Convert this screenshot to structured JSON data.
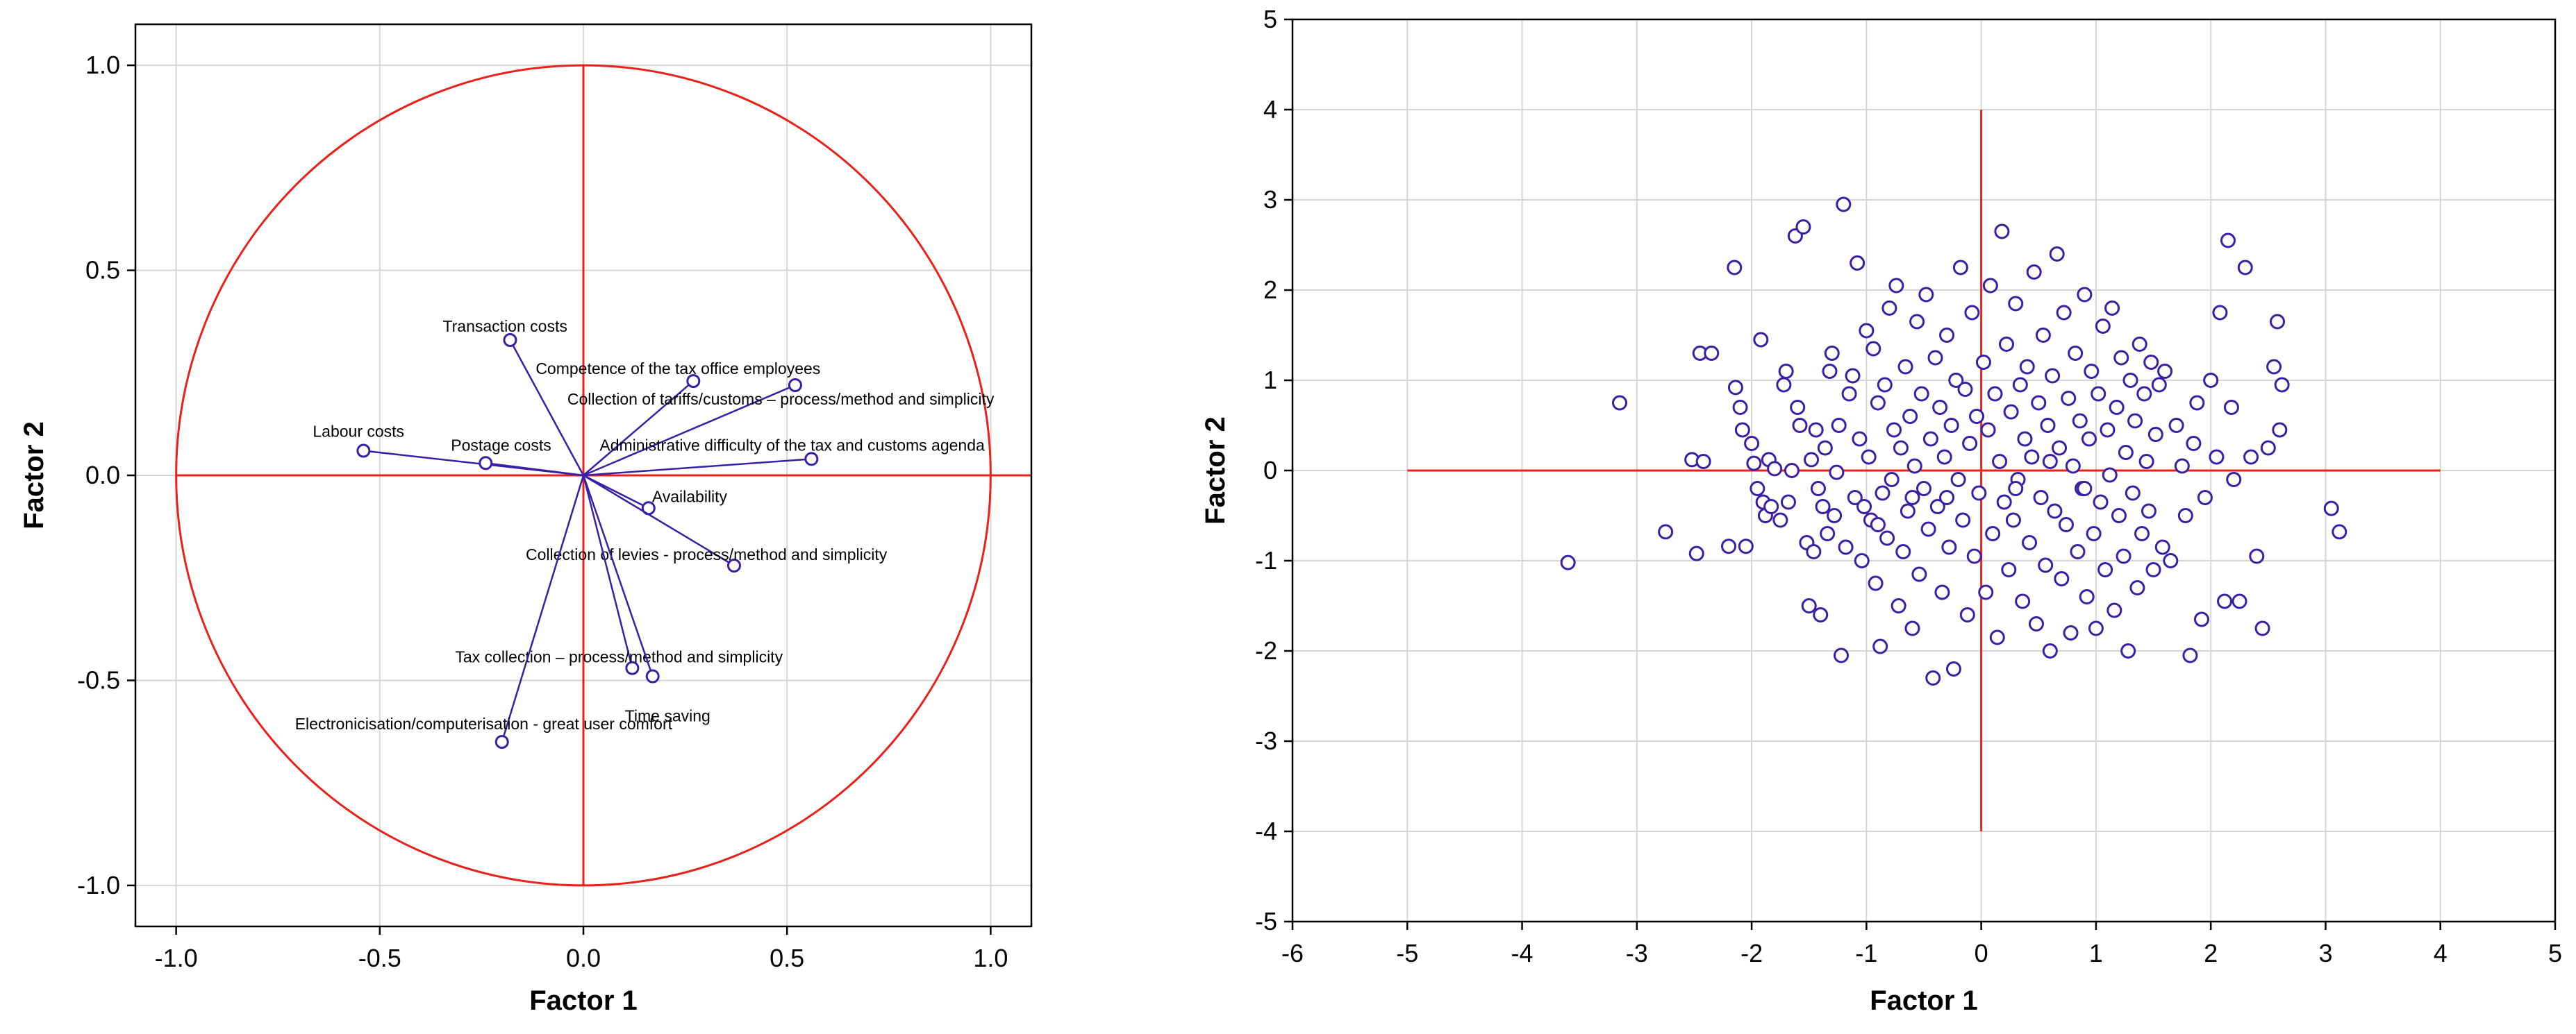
{
  "chart_data": [
    {
      "type": "scatter",
      "subtype": "correlation-circle",
      "xlabel": "Factor 1",
      "ylabel": "Factor 2",
      "xlim": [
        -1.1,
        1.1
      ],
      "ylim": [
        -1.1,
        1.1
      ],
      "xticks": [
        "-1.0",
        "-0.5",
        "0.0",
        "0.5",
        "1.0"
      ],
      "yticks": [
        "1.0",
        "0.5",
        "0.0",
        "-0.5",
        "-1.0"
      ],
      "grid": true,
      "unit_circle": true,
      "vectors": [
        {
          "label": "Transaction costs",
          "x": -0.18,
          "y": 0.33
        },
        {
          "label": "Competence of the tax office employees",
          "x": 0.27,
          "y": 0.23
        },
        {
          "label": "Collection of tariffs/customs – process/method and simplicity",
          "x": 0.52,
          "y": 0.22
        },
        {
          "label": "Labour costs",
          "x": -0.54,
          "y": 0.06
        },
        {
          "label": "Postage costs",
          "x": -0.24,
          "y": 0.03
        },
        {
          "label": "Administrative difficulty of the tax and customs agenda",
          "x": 0.56,
          "y": 0.04
        },
        {
          "label": "Availability",
          "x": 0.16,
          "y": -0.08
        },
        {
          "label": "Collection of levies - process/method and simplicity",
          "x": 0.37,
          "y": -0.22
        },
        {
          "label": "Tax collection – process/method and simplicity",
          "x": 0.12,
          "y": -0.47
        },
        {
          "label": "Time saving",
          "x": 0.17,
          "y": -0.49
        },
        {
          "label": "Electronicisation/computerisation - great user comfort",
          "x": -0.2,
          "y": -0.65
        }
      ]
    },
    {
      "type": "scatter",
      "xlabel": "Factor 1",
      "ylabel": "Factor 2",
      "xlim": [
        -6,
        5
      ],
      "ylim": [
        -5,
        5
      ],
      "xticks": [
        "-6",
        "-5",
        "-4",
        "-3",
        "-2",
        "-1",
        "0",
        "1",
        "2",
        "3",
        "4",
        "5"
      ],
      "yticks": [
        "5",
        "4",
        "3",
        "2",
        "1",
        "0",
        "-1",
        "-2",
        "-3",
        "-4",
        "-5"
      ],
      "grid": true,
      "reference_lines": {
        "horizontal": {
          "y": 0,
          "x_from": -5,
          "x_to": 4
        },
        "vertical": {
          "x": 0,
          "y_from": -4,
          "y_to": 4
        }
      },
      "points": [
        [
          -3.6,
          -1.02
        ],
        [
          -3.15,
          0.75
        ],
        [
          -2.75,
          -0.68
        ],
        [
          -2.52,
          0.12
        ],
        [
          -2.48,
          -0.92
        ],
        [
          -2.45,
          1.3
        ],
        [
          -2.42,
          0.1
        ],
        [
          -2.35,
          1.3
        ],
        [
          -2.2,
          -0.84
        ],
        [
          -2.15,
          2.25
        ],
        [
          -2.14,
          0.92
        ],
        [
          -2.1,
          0.7
        ],
        [
          -2.08,
          0.45
        ],
        [
          -2.05,
          -0.84
        ],
        [
          -2.0,
          0.3
        ],
        [
          -1.98,
          0.08
        ],
        [
          -1.95,
          -0.2
        ],
        [
          -1.92,
          1.45
        ],
        [
          -1.9,
          -0.35
        ],
        [
          -1.88,
          -0.5
        ],
        [
          -1.85,
          0.12
        ],
        [
          -1.83,
          -0.4
        ],
        [
          -1.8,
          0.02
        ],
        [
          -1.75,
          -0.55
        ],
        [
          -1.72,
          0.95
        ],
        [
          -1.7,
          1.1
        ],
        [
          -1.68,
          -0.35
        ],
        [
          -1.65,
          0.0
        ],
        [
          -1.62,
          2.6
        ],
        [
          -1.6,
          0.7
        ],
        [
          -1.58,
          0.5
        ],
        [
          -1.55,
          2.7
        ],
        [
          -1.52,
          -0.8
        ],
        [
          -1.5,
          -1.5
        ],
        [
          -1.48,
          0.12
        ],
        [
          -1.46,
          -0.9
        ],
        [
          -1.44,
          0.45
        ],
        [
          -1.42,
          -0.2
        ],
        [
          -1.4,
          -1.6
        ],
        [
          -1.38,
          -0.4
        ],
        [
          -1.36,
          0.25
        ],
        [
          -1.34,
          -0.7
        ],
        [
          -1.32,
          1.1
        ],
        [
          -1.3,
          1.3
        ],
        [
          -1.28,
          -0.5
        ],
        [
          -1.26,
          -0.02
        ],
        [
          -1.24,
          0.5
        ],
        [
          -1.22,
          -2.05
        ],
        [
          -1.2,
          2.95
        ],
        [
          -1.18,
          -0.85
        ],
        [
          -1.15,
          0.85
        ],
        [
          -1.12,
          1.05
        ],
        [
          -1.1,
          -0.3
        ],
        [
          -1.08,
          2.3
        ],
        [
          -1.06,
          0.35
        ],
        [
          -1.04,
          -1.0
        ],
        [
          -1.02,
          -0.4
        ],
        [
          -1.0,
          1.55
        ],
        [
          -0.98,
          0.15
        ],
        [
          -0.96,
          -0.55
        ],
        [
          -0.94,
          1.35
        ],
        [
          -0.92,
          -1.25
        ],
        [
          -0.9,
          0.75
        ],
        [
          -0.88,
          -1.95
        ],
        [
          -0.86,
          -0.25
        ],
        [
          -0.84,
          0.95
        ],
        [
          -0.82,
          -0.75
        ],
        [
          -0.8,
          1.8
        ],
        [
          -0.78,
          -0.1
        ],
        [
          -0.76,
          0.45
        ],
        [
          -0.74,
          2.05
        ],
        [
          -0.72,
          -1.5
        ],
        [
          -0.7,
          0.25
        ],
        [
          -0.68,
          -0.9
        ],
        [
          -0.66,
          1.15
        ],
        [
          -0.64,
          -0.45
        ],
        [
          -0.62,
          0.6
        ],
        [
          -0.6,
          -1.75
        ],
        [
          -0.58,
          0.05
        ],
        [
          -0.56,
          1.65
        ],
        [
          -0.54,
          -1.15
        ],
        [
          -0.52,
          0.85
        ],
        [
          -0.5,
          -0.2
        ],
        [
          -0.48,
          1.95
        ],
        [
          -0.46,
          -0.65
        ],
        [
          -0.44,
          0.35
        ],
        [
          -0.42,
          -2.3
        ],
        [
          -0.4,
          1.25
        ],
        [
          -0.38,
          -0.4
        ],
        [
          -0.36,
          0.7
        ],
        [
          -0.34,
          -1.35
        ],
        [
          -0.32,
          0.15
        ],
        [
          -0.3,
          1.5
        ],
        [
          -0.28,
          -0.85
        ],
        [
          -0.26,
          0.5
        ],
        [
          -0.24,
          -2.2
        ],
        [
          -0.22,
          1.0
        ],
        [
          -0.2,
          -0.1
        ],
        [
          -0.18,
          2.25
        ],
        [
          -0.16,
          -0.55
        ],
        [
          -0.14,
          0.9
        ],
        [
          -0.12,
          -1.6
        ],
        [
          -0.1,
          0.3
        ],
        [
          -0.08,
          1.75
        ],
        [
          -0.06,
          -0.95
        ],
        [
          -0.04,
          0.6
        ],
        [
          -0.02,
          -0.25
        ],
        [
          0.02,
          1.2
        ],
        [
          0.04,
          -1.35
        ],
        [
          0.06,
          0.45
        ],
        [
          0.08,
          2.05
        ],
        [
          0.1,
          -0.7
        ],
        [
          0.12,
          0.85
        ],
        [
          0.14,
          -1.85
        ],
        [
          0.16,
          0.1
        ],
        [
          0.18,
          2.65
        ],
        [
          0.2,
          -0.35
        ],
        [
          0.22,
          1.4
        ],
        [
          0.24,
          -1.1
        ],
        [
          0.26,
          0.65
        ],
        [
          0.28,
          -0.55
        ],
        [
          0.3,
          1.85
        ],
        [
          0.32,
          -0.1
        ],
        [
          0.34,
          0.95
        ],
        [
          0.36,
          -1.45
        ],
        [
          0.38,
          0.35
        ],
        [
          0.4,
          1.15
        ],
        [
          0.42,
          -0.8
        ],
        [
          0.44,
          0.15
        ],
        [
          0.46,
          2.2
        ],
        [
          0.48,
          -1.7
        ],
        [
          0.5,
          0.75
        ],
        [
          0.52,
          -0.3
        ],
        [
          0.54,
          1.5
        ],
        [
          0.56,
          -1.05
        ],
        [
          0.58,
          0.5
        ],
        [
          0.6,
          -2.0
        ],
        [
          0.62,
          1.05
        ],
        [
          0.64,
          -0.45
        ],
        [
          0.66,
          2.4
        ],
        [
          0.68,
          0.25
        ],
        [
          0.7,
          -1.2
        ],
        [
          0.72,
          1.75
        ],
        [
          0.74,
          -0.6
        ],
        [
          0.76,
          0.8
        ],
        [
          0.78,
          -1.8
        ],
        [
          0.8,
          0.05
        ],
        [
          0.82,
          1.3
        ],
        [
          0.84,
          -0.9
        ],
        [
          0.86,
          0.55
        ],
        [
          0.88,
          -0.2
        ],
        [
          0.9,
          1.95
        ],
        [
          0.92,
          -1.4
        ],
        [
          0.94,
          0.35
        ],
        [
          0.96,
          1.1
        ],
        [
          0.98,
          -0.7
        ],
        [
          1.0,
          -1.75
        ],
        [
          1.02,
          0.85
        ],
        [
          1.04,
          -0.35
        ],
        [
          1.06,
          1.6
        ],
        [
          1.08,
          -1.1
        ],
        [
          1.1,
          0.45
        ],
        [
          1.12,
          -0.05
        ],
        [
          1.14,
          1.8
        ],
        [
          1.16,
          -1.55
        ],
        [
          1.18,
          0.7
        ],
        [
          1.2,
          -0.5
        ],
        [
          1.22,
          1.25
        ],
        [
          1.24,
          -0.95
        ],
        [
          1.26,
          0.2
        ],
        [
          1.28,
          -2.0
        ],
        [
          1.3,
          1.0
        ],
        [
          1.32,
          -0.25
        ],
        [
          1.34,
          0.55
        ],
        [
          1.36,
          -1.3
        ],
        [
          1.38,
          1.4
        ],
        [
          1.4,
          -0.7
        ],
        [
          1.42,
          0.85
        ],
        [
          1.44,
          0.1
        ],
        [
          1.46,
          -0.45
        ],
        [
          1.48,
          1.2
        ],
        [
          1.5,
          -1.1
        ],
        [
          1.52,
          0.4
        ],
        [
          1.55,
          0.95
        ],
        [
          1.58,
          -0.85
        ],
        [
          1.6,
          1.1
        ],
        [
          1.65,
          -1.0
        ],
        [
          1.7,
          0.5
        ],
        [
          1.75,
          0.05
        ],
        [
          1.78,
          -0.5
        ],
        [
          1.82,
          -2.05
        ],
        [
          1.85,
          0.3
        ],
        [
          1.88,
          0.75
        ],
        [
          1.92,
          -1.65
        ],
        [
          1.95,
          -0.3
        ],
        [
          2.0,
          1.0
        ],
        [
          2.05,
          0.15
        ],
        [
          2.08,
          1.75
        ],
        [
          2.12,
          -1.45
        ],
        [
          2.15,
          2.55
        ],
        [
          2.18,
          0.7
        ],
        [
          2.2,
          -0.1
        ],
        [
          2.25,
          -1.45
        ],
        [
          2.3,
          2.25
        ],
        [
          2.35,
          0.15
        ],
        [
          2.4,
          -0.95
        ],
        [
          2.45,
          -1.75
        ],
        [
          2.5,
          0.25
        ],
        [
          2.55,
          1.15
        ],
        [
          2.58,
          1.65
        ],
        [
          2.6,
          0.45
        ],
        [
          2.62,
          0.95
        ],
        [
          3.05,
          -0.42
        ],
        [
          3.12,
          -0.68
        ],
        [
          -0.3,
          -0.3
        ],
        [
          0.3,
          -0.2
        ],
        [
          -0.6,
          -0.3
        ],
        [
          0.6,
          0.1
        ],
        [
          -0.9,
          -0.6
        ],
        [
          0.9,
          -0.2
        ]
      ]
    }
  ]
}
